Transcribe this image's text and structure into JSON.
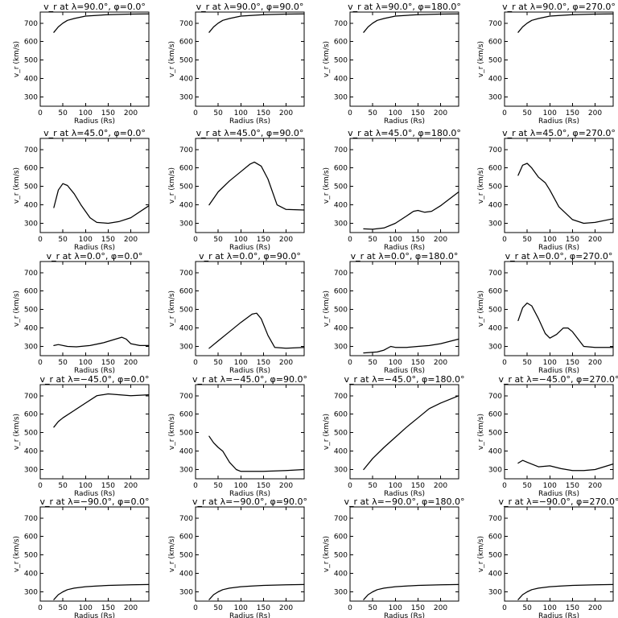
{
  "chart_data": {
    "type": "line",
    "layout": "5x4 grid",
    "shared": {
      "xlabel": "Radius (Rs)",
      "ylabel": "v_r (km/s)",
      "xlim": [
        0,
        240
      ],
      "ylim": [
        250,
        760
      ],
      "xticks": [
        0,
        50,
        100,
        150,
        200
      ],
      "yticks": [
        300,
        400,
        500,
        600,
        700
      ],
      "grid": false
    },
    "panels": [
      {
        "title": "v_r at λ=90.0°, φ=0.0°",
        "x": [
          30,
          40,
          50,
          60,
          75,
          100,
          125,
          150,
          200,
          240
        ],
        "y": [
          650,
          680,
          700,
          715,
          725,
          738,
          742,
          746,
          749,
          750
        ]
      },
      {
        "title": "v_r at λ=90.0°, φ=90.0°",
        "x": [
          30,
          40,
          50,
          60,
          75,
          100,
          125,
          150,
          200,
          240
        ],
        "y": [
          650,
          680,
          700,
          715,
          725,
          738,
          742,
          746,
          749,
          750
        ]
      },
      {
        "title": "v_r at λ=90.0°, φ=180.0°",
        "x": [
          30,
          40,
          50,
          60,
          75,
          100,
          125,
          150,
          200,
          240
        ],
        "y": [
          650,
          680,
          700,
          715,
          725,
          738,
          742,
          746,
          749,
          750
        ]
      },
      {
        "title": "v_r at λ=90.0°, φ=270.0°",
        "x": [
          30,
          40,
          50,
          60,
          75,
          100,
          125,
          150,
          200,
          240
        ],
        "y": [
          650,
          680,
          700,
          715,
          725,
          738,
          742,
          746,
          749,
          750
        ]
      },
      {
        "title": "v_r at λ=45.0°, φ=0.0°",
        "x": [
          30,
          40,
          50,
          60,
          75,
          90,
          110,
          125,
          150,
          175,
          200,
          240
        ],
        "y": [
          385,
          480,
          515,
          505,
          460,
          400,
          330,
          305,
          300,
          310,
          330,
          395
        ]
      },
      {
        "title": "v_r at λ=45.0°, φ=90.0°",
        "x": [
          30,
          50,
          75,
          100,
          120,
          130,
          145,
          160,
          180,
          200,
          240
        ],
        "y": [
          400,
          470,
          530,
          580,
          620,
          632,
          610,
          540,
          400,
          375,
          372
        ]
      },
      {
        "title": "v_r at λ=45.0°, φ=180.0°",
        "x": [
          30,
          50,
          75,
          100,
          125,
          140,
          150,
          165,
          180,
          200,
          240
        ],
        "y": [
          270,
          268,
          275,
          300,
          340,
          365,
          370,
          360,
          365,
          395,
          470
        ]
      },
      {
        "title": "v_r at λ=45.0°, φ=270.0°",
        "x": [
          30,
          40,
          50,
          60,
          75,
          90,
          100,
          120,
          150,
          175,
          200,
          240
        ],
        "y": [
          560,
          615,
          625,
          600,
          550,
          520,
          480,
          390,
          320,
          300,
          305,
          325
        ]
      },
      {
        "title": "v_r at λ=0.0°, φ=0.0°",
        "x": [
          30,
          40,
          60,
          80,
          110,
          140,
          160,
          180,
          190,
          200,
          220,
          240
        ],
        "y": [
          305,
          310,
          300,
          298,
          305,
          320,
          335,
          350,
          340,
          315,
          305,
          305
        ]
      },
      {
        "title": "v_r at λ=0.0°, φ=90.0°",
        "x": [
          30,
          50,
          75,
          100,
          125,
          135,
          145,
          160,
          175,
          200,
          240
        ],
        "y": [
          290,
          330,
          380,
          430,
          475,
          480,
          450,
          360,
          295,
          290,
          295
        ]
      },
      {
        "title": "v_r at λ=0.0°, φ=180.0°",
        "x": [
          30,
          60,
          75,
          90,
          100,
          125,
          150,
          175,
          200,
          240
        ],
        "y": [
          265,
          270,
          280,
          300,
          295,
          295,
          300,
          305,
          315,
          340
        ]
      },
      {
        "title": "v_r at λ=0.0°, φ=270.0°",
        "x": [
          30,
          40,
          50,
          60,
          75,
          90,
          100,
          115,
          130,
          140,
          150,
          175,
          200,
          240
        ],
        "y": [
          440,
          510,
          535,
          520,
          450,
          370,
          345,
          365,
          400,
          400,
          380,
          300,
          295,
          295
        ]
      },
      {
        "title": "v_r at λ=−45.0°, φ=0.0°",
        "x": [
          30,
          40,
          50,
          75,
          100,
          125,
          150,
          175,
          200,
          240
        ],
        "y": [
          530,
          560,
          580,
          620,
          660,
          700,
          710,
          705,
          700,
          705
        ]
      },
      {
        "title": "v_r at λ=−45.0°, φ=90.0°",
        "x": [
          30,
          40,
          50,
          60,
          75,
          90,
          100,
          125,
          150,
          200,
          240
        ],
        "y": [
          480,
          445,
          420,
          400,
          340,
          300,
          290,
          290,
          290,
          295,
          300
        ]
      },
      {
        "title": "v_r at λ=−45.0°, φ=180.0°",
        "x": [
          30,
          50,
          75,
          100,
          125,
          150,
          175,
          200,
          240
        ],
        "y": [
          300,
          360,
          420,
          475,
          530,
          580,
          630,
          660,
          700
        ]
      },
      {
        "title": "v_r at λ=−45.0°, φ=270.0°",
        "x": [
          30,
          40,
          50,
          75,
          100,
          125,
          150,
          175,
          200,
          240
        ],
        "y": [
          335,
          350,
          340,
          315,
          320,
          305,
          295,
          295,
          300,
          330
        ]
      },
      {
        "title": "v_r at λ=−90.0°, φ=0.0°",
        "x": [
          30,
          40,
          50,
          60,
          75,
          100,
          125,
          150,
          200,
          240
        ],
        "y": [
          258,
          285,
          300,
          312,
          320,
          328,
          332,
          335,
          338,
          340
        ]
      },
      {
        "title": "v_r at λ=−90.0°, φ=90.0°",
        "x": [
          30,
          40,
          50,
          60,
          75,
          100,
          125,
          150,
          200,
          240
        ],
        "y": [
          258,
          285,
          300,
          312,
          320,
          328,
          332,
          335,
          338,
          340
        ]
      },
      {
        "title": "v_r at λ=−90.0°, φ=180.0°",
        "x": [
          30,
          40,
          50,
          60,
          75,
          100,
          125,
          150,
          200,
          240
        ],
        "y": [
          258,
          285,
          300,
          312,
          320,
          328,
          332,
          335,
          338,
          340
        ]
      },
      {
        "title": "v_r at λ=−90.0°, φ=270.0°",
        "x": [
          30,
          40,
          50,
          60,
          75,
          100,
          125,
          150,
          200,
          240
        ],
        "y": [
          258,
          285,
          300,
          312,
          320,
          328,
          332,
          335,
          338,
          340
        ]
      }
    ]
  }
}
